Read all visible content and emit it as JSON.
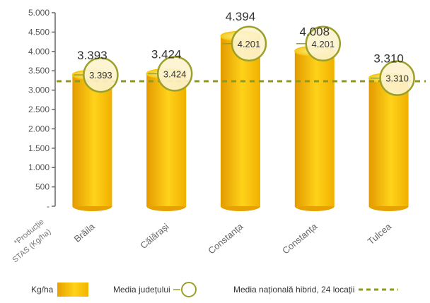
{
  "chart_data": {
    "type": "bar",
    "categories": [
      "Brăila",
      "Călărași",
      "Constanța",
      "Constanța",
      "Tulcea"
    ],
    "values": [
      3393,
      3424,
      4394,
      4008,
      3310
    ],
    "value_labels": [
      "3.393",
      "3.424",
      "4.394",
      "4.008",
      "3.310"
    ],
    "county_average": [
      3393,
      3424,
      4201,
      4201,
      3310
    ],
    "county_average_labels": [
      "3.393",
      "3.424",
      "4.201",
      "4.201",
      "3.310"
    ],
    "national_average": 3230,
    "ylim": [
      0,
      5000
    ],
    "yticks": [
      0,
      500,
      1000,
      1500,
      2000,
      2500,
      3000,
      3500,
      4000,
      4500,
      5000
    ],
    "ytick_labels": [
      "-",
      "500",
      "1.000",
      "1.500",
      "2.000",
      "2.500",
      "3.000",
      "3.500",
      "4.000",
      "4.500",
      "5.000"
    ],
    "corner_label": [
      "*Producție",
      "STAS (Kg/ha)"
    ],
    "grid": false,
    "legend_position": "bottom",
    "colors": {
      "bar_dark": "#e8a000",
      "bar_light": "#ffd21a",
      "circle_stroke": "#9aa02a",
      "circle_fill": "#fdf3cf",
      "national_line": "#8f9a1c",
      "axis": "#666666"
    }
  },
  "legend": {
    "bars_label": "Kg/ha",
    "county_label": "Media județului",
    "national_label": "Media națională hibrid, 24 locații"
  }
}
